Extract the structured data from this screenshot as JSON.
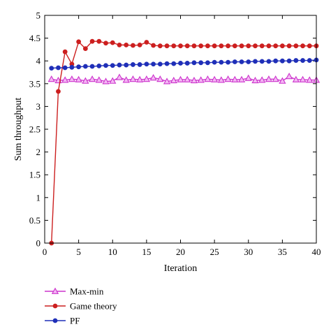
{
  "chart_data": {
    "type": "line",
    "xlabel": "Iteration",
    "ylabel": "Sum throughput",
    "xlim": [
      0,
      40
    ],
    "ylim": [
      0,
      5
    ],
    "xticks": [
      "0",
      "5",
      "10",
      "15",
      "20",
      "25",
      "30",
      "35",
      "40"
    ],
    "yticks": [
      "0",
      "0.5",
      "1",
      "1.5",
      "2",
      "2.5",
      "3",
      "3.5",
      "4",
      "4.5",
      "5"
    ],
    "grid": false,
    "legend_position": "below",
    "x": [
      1,
      2,
      3,
      4,
      5,
      6,
      7,
      8,
      9,
      10,
      11,
      12,
      13,
      14,
      15,
      16,
      17,
      18,
      19,
      20,
      21,
      22,
      23,
      24,
      25,
      26,
      27,
      28,
      29,
      30,
      31,
      32,
      33,
      34,
      35,
      36,
      37,
      38,
      39,
      40
    ],
    "series": [
      {
        "name": "Max-min",
        "color": "#cc33cc",
        "marker": "triangle",
        "values": [
          3.6,
          3.57,
          3.58,
          3.6,
          3.59,
          3.56,
          3.6,
          3.58,
          3.55,
          3.56,
          3.64,
          3.58,
          3.6,
          3.59,
          3.6,
          3.63,
          3.6,
          3.55,
          3.57,
          3.59,
          3.59,
          3.57,
          3.58,
          3.6,
          3.59,
          3.58,
          3.6,
          3.59,
          3.59,
          3.62,
          3.57,
          3.58,
          3.6,
          3.6,
          3.56,
          3.66,
          3.59,
          3.59,
          3.58,
          3.58
        ]
      },
      {
        "name": "Game theory",
        "color": "#cc1f1f",
        "marker": "circle",
        "values": [
          0.0,
          3.33,
          4.2,
          3.93,
          4.42,
          4.27,
          4.43,
          4.43,
          4.39,
          4.4,
          4.35,
          4.35,
          4.34,
          4.35,
          4.41,
          4.34,
          4.33,
          4.33,
          4.33,
          4.33,
          4.33,
          4.33,
          4.33,
          4.33,
          4.33,
          4.33,
          4.33,
          4.33,
          4.33,
          4.33,
          4.33,
          4.33,
          4.33,
          4.33,
          4.33,
          4.33,
          4.33,
          4.33,
          4.33,
          4.33
        ]
      },
      {
        "name": "PF",
        "color": "#1f2fb8",
        "marker": "circle",
        "values": [
          3.84,
          3.85,
          3.85,
          3.86,
          3.87,
          3.88,
          3.88,
          3.89,
          3.9,
          3.9,
          3.91,
          3.91,
          3.92,
          3.92,
          3.93,
          3.93,
          3.93,
          3.94,
          3.94,
          3.95,
          3.95,
          3.96,
          3.96,
          3.96,
          3.97,
          3.97,
          3.97,
          3.98,
          3.98,
          3.98,
          3.99,
          3.99,
          3.99,
          4.0,
          4.0,
          4.0,
          4.01,
          4.01,
          4.01,
          4.02
        ]
      }
    ]
  }
}
